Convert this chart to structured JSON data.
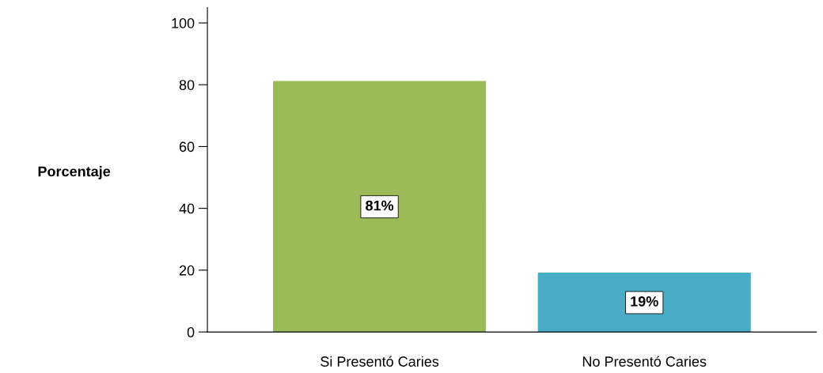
{
  "chart_data": {
    "type": "bar",
    "ylabel": "Porcentaje",
    "categories": [
      "Si Presentó Caries",
      "No Presentó Caries"
    ],
    "values": [
      81,
      19
    ],
    "colors": [
      "#9bbb59",
      "#4bacc6"
    ],
    "value_labels": [
      "81%",
      "19%"
    ],
    "ylim": [
      0,
      105
    ],
    "yticks": [
      0,
      20,
      40,
      60,
      80,
      100
    ],
    "grid": false,
    "legend": false
  }
}
